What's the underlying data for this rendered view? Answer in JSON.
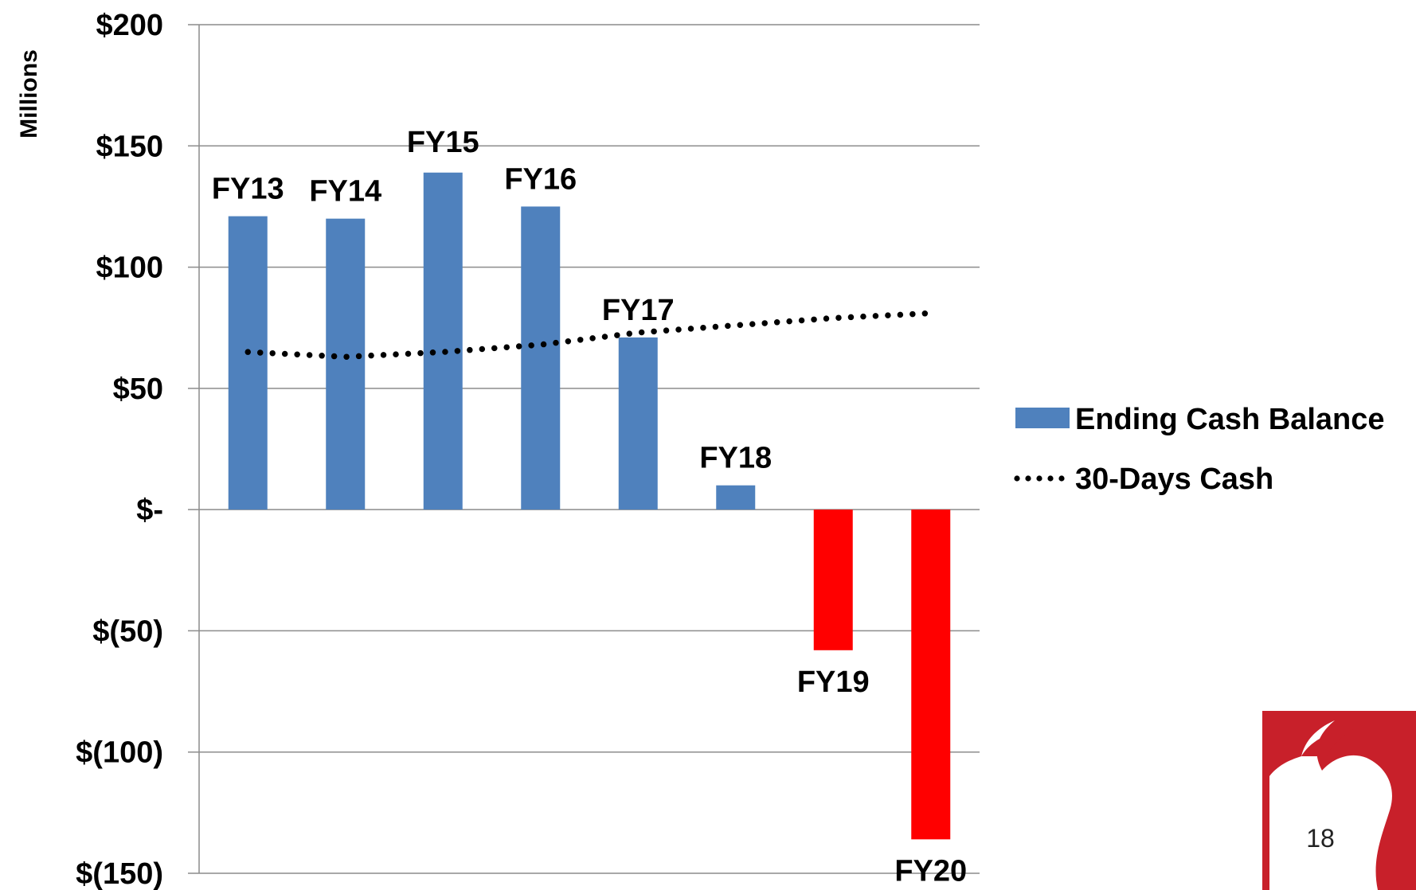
{
  "chart_data": {
    "type": "bar",
    "categories": [
      "FY13",
      "FY14",
      "FY15",
      "FY16",
      "FY17",
      "FY18",
      "FY19",
      "FY20"
    ],
    "series": [
      {
        "name": "Ending Cash Balance",
        "type": "bar",
        "values": [
          121,
          120,
          139,
          125,
          71,
          10,
          -58,
          -136
        ],
        "color_positive": "#4f81bd",
        "color_negative": "#ff0000"
      },
      {
        "name": "30-Days Cash",
        "type": "dotted-line",
        "values": [
          65,
          63,
          65,
          68,
          73,
          76,
          79,
          81
        ],
        "color": "#000000"
      }
    ],
    "ylabel": "Millions",
    "ylim": [
      -150,
      200
    ],
    "yticks": [
      200,
      150,
      100,
      50,
      0,
      -50,
      -100,
      -150
    ],
    "ytick_labels": [
      "$200",
      "$150",
      "$100",
      "$50",
      "$-",
      "$(50)",
      "$(100)",
      "$(150)"
    ],
    "grid": true,
    "legend_position": "right"
  },
  "legend": {
    "bar_label": "Ending Cash Balance",
    "line_label": "30-Days Cash"
  },
  "page_number": "18",
  "colors": {
    "logo_red": "#c8202a"
  }
}
